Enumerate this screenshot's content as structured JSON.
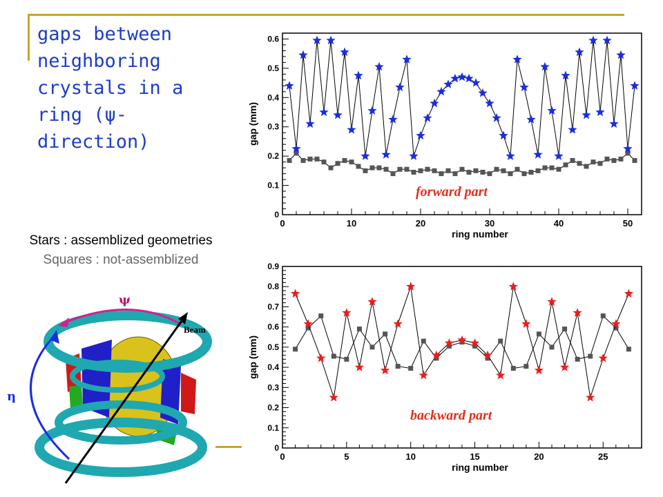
{
  "slide": {
    "title": "gaps between neighboring crystals in a ring (ψ-direction)",
    "legend_stars": "Stars : assemblized geometries",
    "legend_squares": "Squares : not-assemblized"
  },
  "diagram": {
    "psi_label": "ψ",
    "beam_label": "Beam",
    "eta_label": "η"
  },
  "colors": {
    "title": "#1e3cc8",
    "accent_line": "#c8a52a",
    "forward_stars": "#1a2ee0",
    "backward_stars": "#ee1c1c",
    "squares": "#555555",
    "annotation": "#e0301e"
  },
  "chart_data": [
    {
      "type": "line",
      "annotation": "forward part",
      "title": "",
      "xlabel": "ring number",
      "ylabel": "gap (mm)",
      "xlim": [
        0,
        52
      ],
      "ylim": [
        0,
        0.62
      ],
      "x_ticks": [
        0,
        10,
        20,
        30,
        40,
        50
      ],
      "y_ticks": [
        0,
        0.1,
        0.2,
        0.3,
        0.4,
        0.5,
        0.6
      ],
      "grid": false,
      "series": [
        {
          "marker": "star",
          "x": [
            1,
            2,
            3,
            4,
            5,
            6,
            7,
            8,
            9,
            10,
            11,
            12,
            13,
            14,
            15,
            16,
            17,
            18,
            19,
            20,
            21,
            22,
            23,
            24,
            25,
            26,
            27,
            28,
            29,
            30,
            31,
            32,
            33,
            34,
            35,
            36,
            37,
            38,
            39,
            40,
            41,
            42,
            43,
            44,
            45,
            46,
            47,
            48,
            49,
            50,
            51
          ],
          "values": [
            0.44,
            0.225,
            0.545,
            0.31,
            0.595,
            0.35,
            0.595,
            0.34,
            0.555,
            0.29,
            0.475,
            0.2,
            0.355,
            0.505,
            0.205,
            0.325,
            0.435,
            0.53,
            0.2,
            0.27,
            0.33,
            0.38,
            0.42,
            0.445,
            0.465,
            0.47,
            0.465,
            0.45,
            0.415,
            0.38,
            0.33,
            0.27,
            0.2,
            0.53,
            0.435,
            0.325,
            0.205,
            0.505,
            0.355,
            0.2,
            0.475,
            0.29,
            0.555,
            0.34,
            0.595,
            0.35,
            0.595,
            0.31,
            0.545,
            0.225,
            0.44
          ]
        },
        {
          "marker": "square",
          "x": [
            1,
            2,
            3,
            4,
            5,
            6,
            7,
            8,
            9,
            10,
            11,
            12,
            13,
            14,
            15,
            16,
            17,
            18,
            19,
            20,
            21,
            22,
            23,
            24,
            25,
            26,
            27,
            28,
            29,
            30,
            31,
            32,
            33,
            34,
            35,
            36,
            37,
            38,
            39,
            40,
            41,
            42,
            43,
            44,
            45,
            46,
            47,
            48,
            49,
            50,
            51
          ],
          "values": [
            0.185,
            0.21,
            0.185,
            0.19,
            0.19,
            0.18,
            0.16,
            0.175,
            0.185,
            0.18,
            0.165,
            0.15,
            0.16,
            0.16,
            0.155,
            0.14,
            0.155,
            0.155,
            0.145,
            0.15,
            0.155,
            0.15,
            0.14,
            0.15,
            0.14,
            0.155,
            0.145,
            0.15,
            0.145,
            0.14,
            0.155,
            0.15,
            0.14,
            0.155,
            0.14,
            0.145,
            0.15,
            0.16,
            0.16,
            0.155,
            0.17,
            0.185,
            0.175,
            0.165,
            0.18,
            0.175,
            0.19,
            0.185,
            0.19,
            0.21,
            0.185
          ]
        }
      ]
    },
    {
      "type": "line",
      "annotation": "backward part",
      "title": "",
      "xlabel": "ring number",
      "ylabel": "gap (mm)",
      "xlim": [
        0,
        28
      ],
      "ylim": [
        0,
        0.9
      ],
      "x_ticks": [
        0,
        5,
        10,
        15,
        20,
        25
      ],
      "y_ticks": [
        0,
        0.1,
        0.2,
        0.3,
        0.4,
        0.5,
        0.6,
        0.7,
        0.8,
        0.9
      ],
      "grid": false,
      "series": [
        {
          "marker": "star",
          "x": [
            1,
            2,
            3,
            4,
            5,
            6,
            7,
            8,
            9,
            10,
            11,
            12,
            13,
            14,
            15,
            16,
            17,
            18,
            19,
            20,
            21,
            22,
            23,
            24,
            25,
            26,
            27
          ],
          "values": [
            0.765,
            0.615,
            0.445,
            0.25,
            0.67,
            0.4,
            0.725,
            0.385,
            0.615,
            0.8,
            0.36,
            0.46,
            0.52,
            0.535,
            0.52,
            0.46,
            0.36,
            0.8,
            0.615,
            0.385,
            0.725,
            0.4,
            0.67,
            0.25,
            0.445,
            0.615,
            0.765
          ]
        },
        {
          "marker": "square",
          "x": [
            1,
            2,
            3,
            4,
            5,
            6,
            7,
            8,
            9,
            10,
            11,
            12,
            13,
            14,
            15,
            16,
            17,
            18,
            19,
            20,
            21,
            22,
            23,
            24,
            25,
            26,
            27
          ],
          "values": [
            0.49,
            0.595,
            0.655,
            0.455,
            0.44,
            0.59,
            0.5,
            0.565,
            0.405,
            0.395,
            0.53,
            0.445,
            0.505,
            0.525,
            0.505,
            0.445,
            0.53,
            0.395,
            0.405,
            0.565,
            0.5,
            0.59,
            0.44,
            0.455,
            0.655,
            0.595,
            0.49
          ]
        }
      ]
    }
  ]
}
